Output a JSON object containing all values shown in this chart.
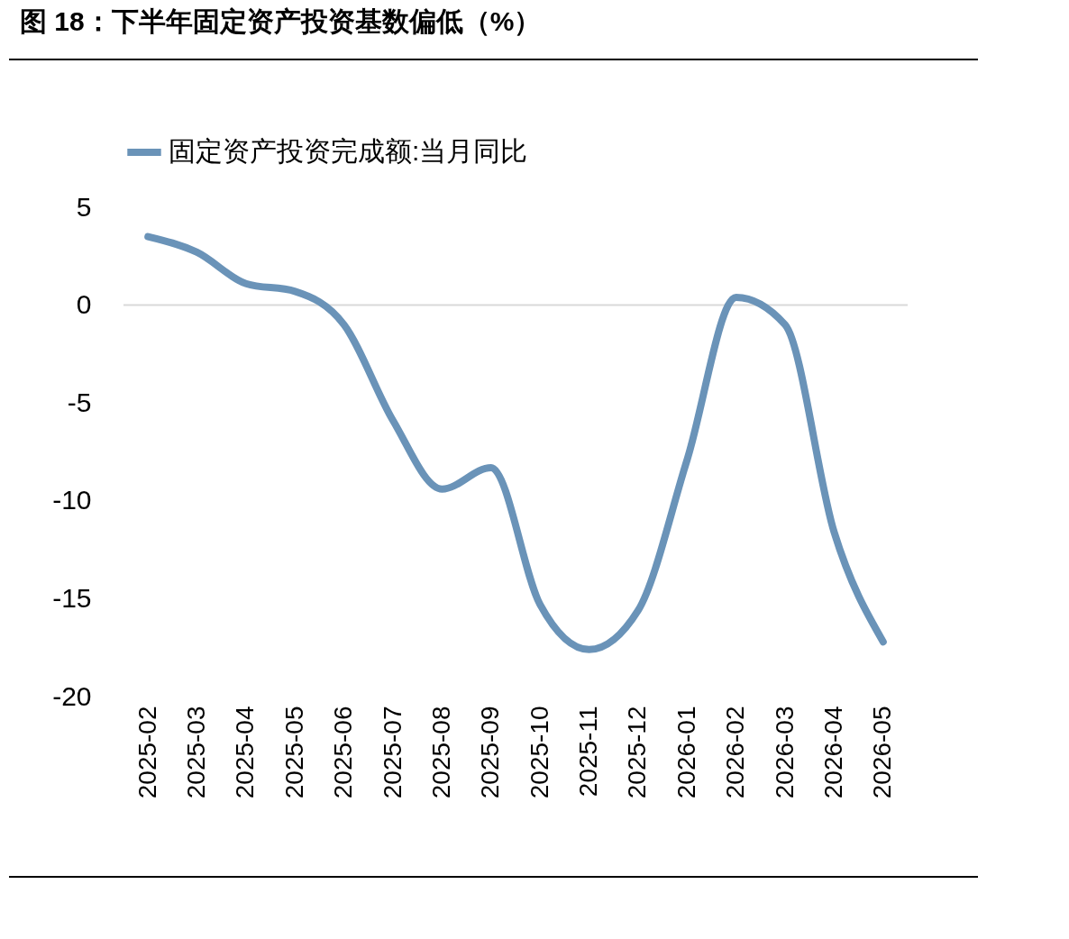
{
  "chart_data": {
    "type": "line",
    "title": "图 18：下半年固定资产投资基数偏低（%）",
    "categories": [
      "2025-02",
      "2025-03",
      "2025-04",
      "2025-05",
      "2025-06",
      "2025-07",
      "2025-08",
      "2025-09",
      "2025-10",
      "2025-11",
      "2025-12",
      "2026-01",
      "2026-02",
      "2026-03",
      "2026-04",
      "2026-05"
    ],
    "series": [
      {
        "name": "固定资产投资完成额:当月同比",
        "color": "#6a93b8",
        "values": [
          3.5,
          2.7,
          1.1,
          0.7,
          -1.0,
          -5.9,
          -9.4,
          -8.3,
          -15.3,
          -17.6,
          -15.6,
          -7.9,
          0.4,
          -1.0,
          -11.6,
          -17.2
        ]
      }
    ],
    "ylim": [
      -20,
      5
    ],
    "yticks": [
      -20,
      -15,
      -10,
      -5,
      0,
      5
    ],
    "ref_lines": [
      {
        "axis": "y",
        "value": 0,
        "color": "#d9d9d9"
      }
    ],
    "legend": "top",
    "line_style": "solid"
  }
}
